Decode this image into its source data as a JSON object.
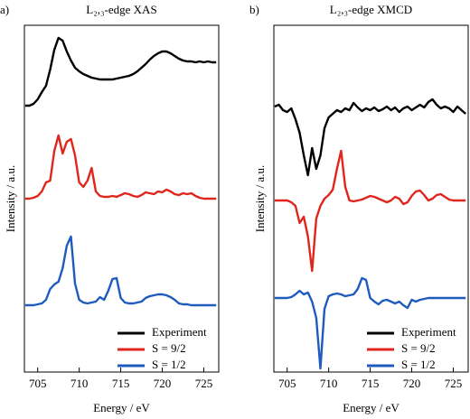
{
  "chart_data": [
    {
      "type": "line",
      "label": "a)",
      "title": "L₂,₃-edge XAS",
      "xlabel": "Energy / eV",
      "ylabel": "Intensity / a.u.",
      "xlim": [
        703.4,
        726.8
      ],
      "xticks": [
        705,
        710,
        715,
        720,
        725
      ],
      "ylim": [
        0,
        384
      ],
      "legend": "lower right",
      "x": [
        703.5,
        704,
        704.5,
        705,
        705.5,
        706,
        706.5,
        707,
        707.5,
        708,
        708.5,
        709,
        709.5,
        710,
        710.5,
        711,
        711.5,
        712,
        712.5,
        713,
        713.5,
        714,
        714.5,
        715,
        715.5,
        716,
        716.5,
        717,
        717.5,
        718,
        718.5,
        719,
        719.5,
        720,
        720.5,
        721,
        721.5,
        722,
        722.5,
        723,
        723.5,
        724,
        724.5,
        725,
        725.5,
        726,
        726.5
      ],
      "series": [
        {
          "name": "Experiment",
          "color": "#000000",
          "values": [
            295,
            295,
            297,
            302,
            310,
            317,
            335,
            357,
            370,
            367,
            355,
            345,
            337,
            333,
            330,
            328,
            326,
            325,
            324,
            324,
            324,
            324,
            325,
            326,
            327,
            328,
            330,
            333,
            337,
            341,
            346,
            350,
            353,
            355,
            355,
            353,
            350,
            347,
            345,
            344,
            344,
            343,
            344,
            343,
            344,
            343,
            343
          ]
        },
        {
          "name": "S = 9/2",
          "color": "#e0261c",
          "values": [
            192,
            192,
            193,
            195,
            200,
            210,
            212,
            245,
            262,
            242,
            255,
            258,
            240,
            210,
            205,
            212,
            226,
            200,
            195,
            194,
            194,
            195,
            194,
            196,
            198,
            197,
            195,
            194,
            196,
            199,
            198,
            197,
            200,
            199,
            202,
            200,
            197,
            196,
            198,
            197,
            198,
            195,
            193,
            192,
            192,
            192,
            192
          ]
        },
        {
          "name": "S = 1/2",
          "color": "#1f5bbd",
          "values": [
            74,
            74,
            74,
            75,
            76,
            80,
            92,
            97,
            100,
            115,
            140,
            150,
            98,
            80,
            77,
            76,
            77,
            78,
            83,
            80,
            90,
            103,
            104,
            82,
            77,
            76,
            76,
            77,
            78,
            82,
            84,
            85,
            86,
            86,
            85,
            83,
            80,
            76,
            75,
            75,
            74,
            74,
            74,
            74,
            74,
            74,
            74
          ]
        }
      ]
    },
    {
      "type": "line",
      "label": "b)",
      "title": "L₂,₃-edge XMCD",
      "xlabel": "Energy / eV",
      "ylabel": "Intensity / a.u.",
      "xlim": [
        703.4,
        726.8
      ],
      "xticks": [
        705,
        710,
        715,
        720,
        725
      ],
      "ylim": [
        0,
        384
      ],
      "legend": "lower right",
      "x": [
        703.5,
        704,
        704.5,
        705,
        705.5,
        706,
        706.5,
        707,
        707.5,
        708,
        708.5,
        709,
        709.5,
        710,
        710.5,
        711,
        711.5,
        712,
        712.5,
        713,
        713.5,
        714,
        714.5,
        715,
        715.5,
        716,
        716.5,
        717,
        717.5,
        718,
        718.5,
        719,
        719.5,
        720,
        720.5,
        721,
        721.5,
        722,
        722.5,
        723,
        723.5,
        724,
        724.5,
        725,
        725.5,
        726,
        726.5
      ],
      "series": [
        {
          "name": "Experiment",
          "color": "#000000",
          "values": [
            294,
            296,
            290,
            288,
            292,
            280,
            265,
            240,
            218,
            248,
            225,
            240,
            270,
            282,
            286,
            290,
            288,
            292,
            290,
            298,
            293,
            289,
            292,
            290,
            293,
            289,
            291,
            294,
            290,
            293,
            288,
            292,
            294,
            290,
            293,
            296,
            293,
            299,
            302,
            296,
            292,
            294,
            292,
            288,
            294,
            290,
            286
          ]
        },
        {
          "name": "S = 9/2",
          "color": "#e0261c",
          "values": [
            190,
            190,
            190,
            190,
            188,
            184,
            165,
            172,
            150,
            112,
            170,
            184,
            192,
            196,
            202,
            225,
            245,
            205,
            190,
            189,
            190,
            191,
            193,
            195,
            194,
            192,
            190,
            188,
            190,
            194,
            192,
            186,
            188,
            195,
            200,
            201,
            196,
            190,
            192,
            196,
            197,
            194,
            191,
            190,
            190,
            190,
            190
          ]
        },
        {
          "name": "S = 1/2",
          "color": "#1f5bbd",
          "values": [
            82,
            82,
            82,
            82,
            83,
            86,
            90,
            86,
            88,
            78,
            60,
            4,
            70,
            84,
            86,
            87,
            86,
            84,
            85,
            86,
            92,
            104,
            102,
            82,
            78,
            75,
            79,
            80,
            78,
            76,
            78,
            74,
            71,
            80,
            78,
            80,
            81,
            82,
            82,
            82,
            82,
            82,
            82,
            82,
            82,
            82,
            82
          ]
        }
      ]
    }
  ]
}
